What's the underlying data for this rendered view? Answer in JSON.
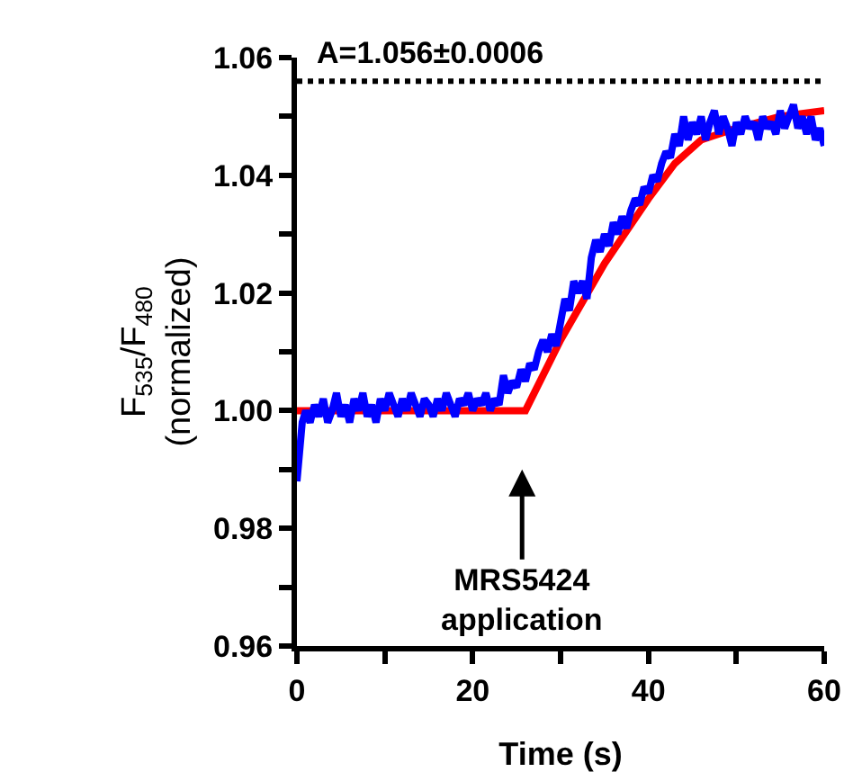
{
  "chart_data": {
    "type": "line",
    "xlabel": "Time (s)",
    "ylabel": "F$_{535}$/F$_{480}$\n(normalized)",
    "xlim": [
      0,
      60
    ],
    "ylim": [
      0.96,
      1.06
    ],
    "xticks": [
      0,
      {
        "value": 10,
        "label": null
      },
      20,
      {
        "value": 30,
        "label": null
      },
      40,
      {
        "value": 50,
        "label": null
      },
      60
    ],
    "yticks": [
      0.96,
      {
        "value": 0.97,
        "label": null
      },
      0.98,
      {
        "value": 0.99,
        "label": null
      },
      "1.00",
      {
        "value": 1.01,
        "label": null
      },
      1.02,
      {
        "value": 1.03,
        "label": null
      },
      1.04,
      {
        "value": 1.05,
        "label": null
      },
      1.06
    ],
    "grid": false,
    "marker": "none",
    "line_style": "solid",
    "series": [
      {
        "color": "#ff0000",
        "x": [
          0,
          26,
          30,
          35,
          40,
          43,
          46,
          50,
          55,
          60
        ],
        "values": [
          1.0,
          1.0,
          1.012,
          1.025,
          1.036,
          1.042,
          1.046,
          1.048,
          1.05,
          1.051
        ]
      },
      {
        "color": "#0000ff",
        "x": [
          0,
          0.3,
          0.6,
          1,
          1.5,
          2,
          2.5,
          3,
          3.5,
          4,
          4.5,
          5,
          5.5,
          6,
          6.5,
          7,
          7.5,
          8,
          8.5,
          9,
          9.5,
          10,
          10.5,
          11,
          11.5,
          12,
          12.5,
          13,
          13.5,
          14,
          14.5,
          15,
          15.5,
          16,
          16.5,
          17,
          17.5,
          18,
          18.5,
          19,
          19.5,
          20,
          20.5,
          21,
          21.5,
          22,
          22.5,
          23,
          23.5,
          24,
          24.5,
          25,
          25.5,
          26,
          26.5,
          27,
          27.5,
          28,
          28.5,
          29,
          29.5,
          30,
          30.5,
          31,
          31.5,
          32,
          32.5,
          33,
          33.5,
          34,
          34.5,
          35,
          35.5,
          36,
          36.5,
          37,
          37.5,
          38,
          38.5,
          39,
          39.5,
          40,
          40.5,
          41,
          41.5,
          42,
          42.5,
          43,
          43.5,
          44,
          44.5,
          45,
          45.5,
          46,
          46.5,
          47,
          47.5,
          48,
          48.5,
          49,
          49.5,
          50,
          50.5,
          51,
          51.5,
          52,
          52.5,
          53,
          53.5,
          54,
          54.5,
          55,
          55.5,
          56,
          56.5,
          57,
          57.5,
          58,
          58.5,
          59,
          59.5,
          60
        ],
        "values": [
          0.988,
          0.993,
          0.998,
          1.0,
          0.998,
          1.001,
          0.999,
          1.002,
          0.998,
          1.0,
          1.003,
          0.999,
          1.001,
          0.998,
          1.002,
          1.0,
          1.003,
          0.999,
          1.001,
          0.998,
          1.002,
          1.0,
          1.003,
          1.001,
          0.999,
          1.002,
          1.0,
          1.003,
          1.001,
          0.999,
          1.002,
          1.001,
          0.999,
          1.002,
          1.0,
          1.003,
          1.001,
          0.999,
          1.002,
          1.001,
          1.003,
          1.0,
          1.002,
          1.001,
          1.003,
          1.0,
          1.002,
          1.001,
          1.006,
          1.003,
          1.005,
          1.004,
          1.007,
          1.005,
          1.008,
          1.007,
          1.01,
          1.012,
          1.01,
          1.013,
          1.011,
          1.015,
          1.019,
          1.017,
          1.022,
          1.02,
          1.022,
          1.019,
          1.026,
          1.029,
          1.027,
          1.03,
          1.028,
          1.032,
          1.03,
          1.033,
          1.031,
          1.034,
          1.036,
          1.035,
          1.038,
          1.037,
          1.04,
          1.039,
          1.042,
          1.044,
          1.043,
          1.047,
          1.045,
          1.05,
          1.046,
          1.049,
          1.047,
          1.05,
          1.046,
          1.049,
          1.051,
          1.047,
          1.05,
          1.048,
          1.045,
          1.049,
          1.047,
          1.05,
          1.048,
          1.049,
          1.046,
          1.05,
          1.048,
          1.049,
          1.047,
          1.051,
          1.048,
          1.05,
          1.052,
          1.048,
          1.05,
          1.047,
          1.05,
          1.046,
          1.048,
          1.045
        ]
      }
    ],
    "ref_lines": [
      {
        "axis": "y",
        "value": 1.056,
        "label": "A=1.056±0.0006",
        "color": "#000000",
        "line_style": "dotted"
      }
    ],
    "annotations": [
      "MRS5424\napplication"
    ]
  }
}
